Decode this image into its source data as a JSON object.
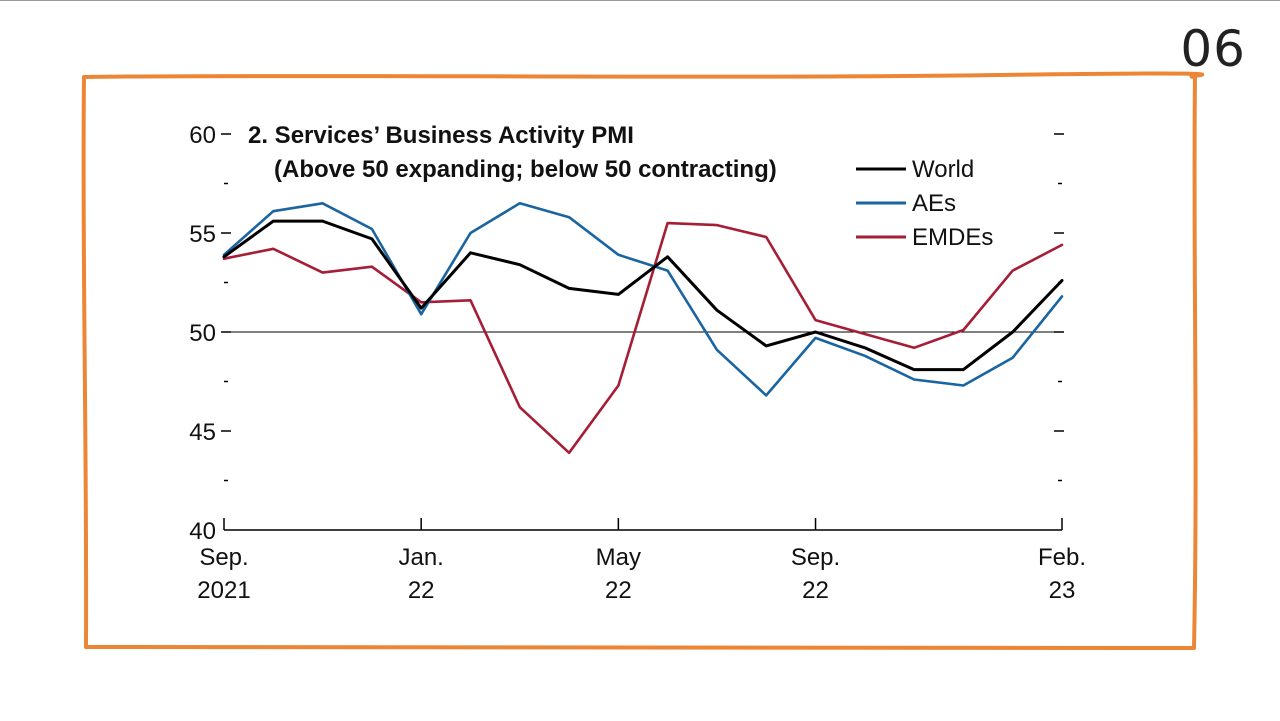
{
  "slide_number": "06",
  "chart_data": {
    "type": "line",
    "title_line1": "2. Services’ Business Activity PMI",
    "title_line2": "(Above 50 expanding; below 50 contracting)",
    "xlabel": "",
    "ylabel": "",
    "ylim": [
      40,
      60
    ],
    "yticks": [
      40,
      45,
      50,
      55,
      60
    ],
    "yticks_minor": [
      42.5,
      47.5,
      52.5,
      57.5
    ],
    "reference_line": 50,
    "months": [
      "2021-09",
      "2021-10",
      "2021-11",
      "2021-12",
      "2022-01",
      "2022-02",
      "2022-03",
      "2022-04",
      "2022-05",
      "2022-06",
      "2022-07",
      "2022-08",
      "2022-09",
      "2022-10",
      "2022-11",
      "2022-12",
      "2023-01",
      "2023-02"
    ],
    "x_tick_labels": [
      {
        "index": 0,
        "line1": "Sep.",
        "line2": "2021"
      },
      {
        "index": 4,
        "line1": "Jan.",
        "line2": "22"
      },
      {
        "index": 8,
        "line1": "May",
        "line2": "22"
      },
      {
        "index": 12,
        "line1": "Sep.",
        "line2": "22"
      },
      {
        "index": 17,
        "line1": "Feb.",
        "line2": "23"
      }
    ],
    "legend_position": "top-right",
    "series": [
      {
        "name": "World",
        "color": "#000000",
        "values": [
          53.8,
          55.6,
          55.6,
          54.7,
          51.2,
          54.0,
          53.4,
          52.2,
          51.9,
          53.8,
          51.1,
          49.3,
          50.0,
          49.2,
          48.1,
          48.1,
          50.0,
          52.6
        ]
      },
      {
        "name": "AEs",
        "color": "#1a64a0",
        "values": [
          53.9,
          56.1,
          56.5,
          55.2,
          50.9,
          55.0,
          56.5,
          55.8,
          53.9,
          53.1,
          49.1,
          46.8,
          49.7,
          48.8,
          47.6,
          47.3,
          48.7,
          51.8
        ]
      },
      {
        "name": "EMDEs",
        "color": "#a61e36",
        "values": [
          53.7,
          54.2,
          53.0,
          53.3,
          51.5,
          51.6,
          46.2,
          43.9,
          47.3,
          55.5,
          55.4,
          54.8,
          50.6,
          49.9,
          49.2,
          50.1,
          53.1,
          54.4
        ]
      }
    ]
  }
}
